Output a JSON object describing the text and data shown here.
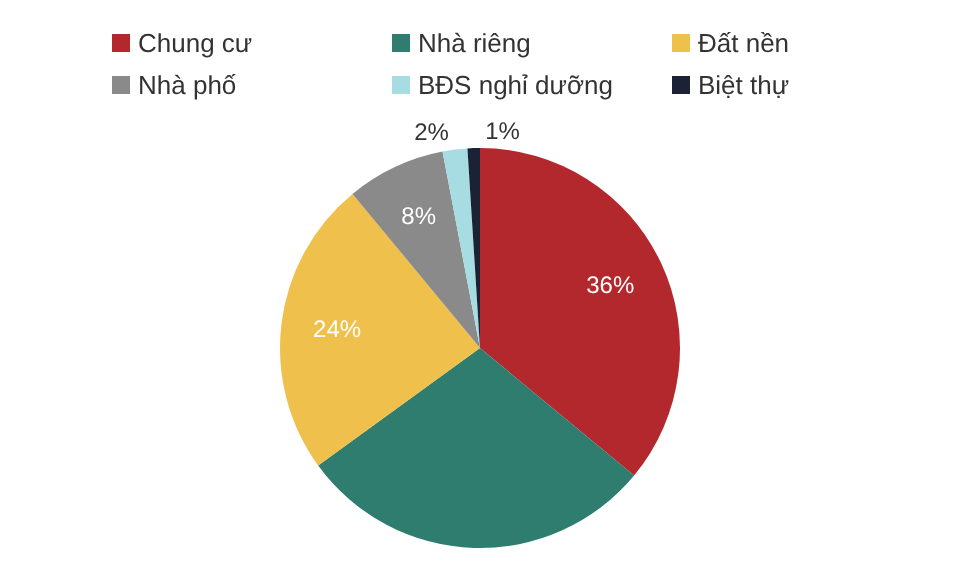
{
  "chart_data": {
    "type": "pie",
    "categories": [
      "Chung cư",
      "Nhà riêng",
      "Đất nền",
      "Nhà phố",
      "BĐS nghỉ dưỡng",
      "Biệt thự"
    ],
    "values": [
      36,
      29,
      24,
      8,
      2,
      1
    ],
    "colors": [
      "#b3282d",
      "#2e7d6e",
      "#f0c04c",
      "#8a8a8a",
      "#a6dce2",
      "#1b2236"
    ],
    "value_labels": [
      "36%",
      null,
      "24%",
      "8%",
      "2%",
      "1%"
    ],
    "legend": "top"
  }
}
